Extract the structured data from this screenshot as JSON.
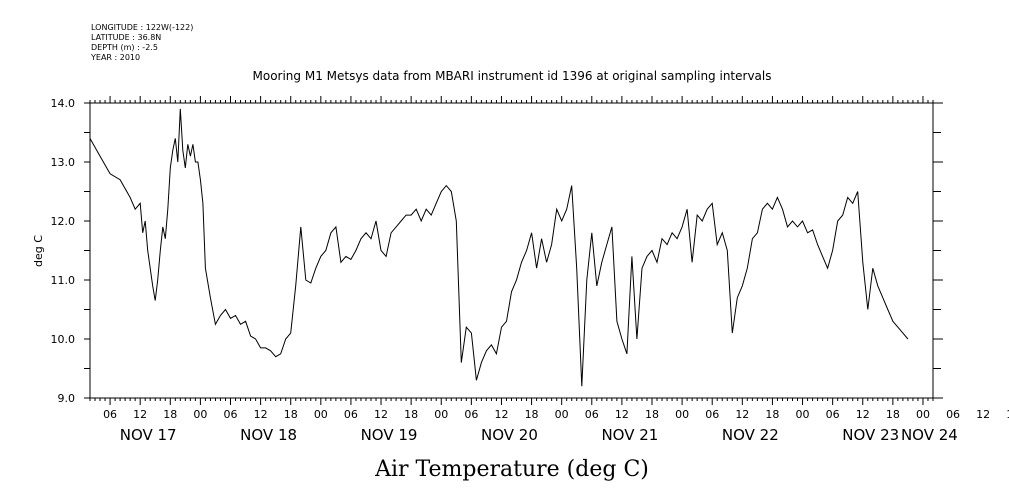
{
  "header": {
    "meta_lines": [
      "LONGITUDE : 122W(-122)",
      "LATITUDE : 36.8N",
      "DEPTH (m) : -2.5",
      "YEAR : 2010"
    ],
    "title": "Mooring M1 Metsys data from MBARI instrument id 1396 at original sampling intervals"
  },
  "chart_data": {
    "type": "line",
    "title": "Mooring M1 Metsys data from MBARI instrument id 1396 at original sampling intervals",
    "xlabel": "Air Temperature (deg C)",
    "ylabel": "deg C",
    "ylim": [
      9.0,
      14.0
    ],
    "y_ticks": [
      "9.0",
      "10.0",
      "11.0",
      "12.0",
      "13.0",
      "14.0"
    ],
    "xlim_hours": [
      0,
      168
    ],
    "x_hour_ticks": [
      "06",
      "12",
      "18",
      "00",
      "06",
      "12",
      "18",
      "00",
      "06",
      "12",
      "18",
      "00",
      "06",
      "12",
      "18",
      "00",
      "06",
      "12",
      "18",
      "00",
      "06",
      "12",
      "18",
      "00",
      "06",
      "12",
      "18",
      "00",
      "06",
      "12",
      "18",
      "00"
    ],
    "x_day_labels": [
      "NOV 17",
      "NOV 18",
      "NOV 19",
      "NOV 20",
      "NOV 21",
      "NOV 22",
      "NOV 23",
      "NOV 24"
    ],
    "grid": false,
    "line_color": "#000000",
    "series": [
      {
        "x_hours_from_nov17_0200": [
          0,
          2,
          4,
          6,
          8,
          9,
          10,
          10.5,
          11,
          11.5,
          12,
          12.5,
          13,
          13.5,
          14,
          14.5,
          15,
          15.5,
          16,
          16.5,
          17,
          17.5,
          18,
          18.5,
          19,
          19.5,
          20,
          20.5,
          21,
          21.5,
          22,
          22.5,
          23,
          24,
          25,
          26,
          27,
          28,
          29,
          30,
          31,
          32,
          33,
          34,
          35,
          36,
          37,
          38,
          39,
          40,
          41,
          42,
          43,
          44,
          45,
          46,
          47,
          48,
          49,
          50,
          51,
          52,
          53,
          54,
          55,
          56,
          57,
          58,
          59,
          60,
          61,
          62,
          63,
          64,
          65,
          66,
          67,
          68,
          69,
          70,
          71,
          72,
          73,
          74,
          75,
          76,
          77,
          78,
          79,
          80,
          81,
          82,
          83,
          84,
          85,
          86,
          87,
          88,
          89,
          90,
          91,
          92,
          93,
          94,
          95,
          96,
          97,
          98,
          99,
          100,
          101,
          102,
          103,
          104,
          105,
          106,
          107,
          108,
          109,
          110,
          111,
          112,
          113,
          114,
          115,
          116,
          117,
          118,
          119,
          120,
          121,
          122,
          123,
          124,
          125,
          126,
          127,
          128,
          129,
          130,
          131,
          132,
          133,
          134,
          135,
          136,
          137,
          138,
          139,
          140,
          141,
          142,
          143,
          144,
          145,
          146,
          147,
          148,
          149,
          150,
          151,
          152,
          153,
          154,
          155,
          156,
          157,
          158,
          159,
          160,
          161,
          162,
          163,
          164,
          165,
          166,
          167,
          168
        ],
        "values": [
          13.4,
          13.1,
          12.8,
          12.7,
          12.4,
          12.2,
          12.3,
          11.8,
          12.0,
          11.5,
          11.2,
          10.9,
          10.65,
          11.0,
          11.5,
          11.9,
          11.7,
          12.2,
          12.9,
          13.2,
          13.4,
          13.0,
          13.9,
          13.2,
          12.9,
          13.3,
          13.1,
          13.3,
          13.0,
          13.0,
          12.7,
          12.3,
          11.2,
          10.7,
          10.25,
          10.4,
          10.5,
          10.35,
          10.4,
          10.25,
          10.3,
          10.05,
          10.0,
          9.85,
          9.85,
          9.8,
          9.7,
          9.75,
          10.0,
          10.1,
          10.9,
          11.9,
          11.0,
          10.95,
          11.2,
          11.4,
          11.5,
          11.8,
          11.9,
          11.3,
          11.4,
          11.35,
          11.5,
          11.7,
          11.8,
          11.7,
          12.0,
          11.5,
          11.4,
          11.8,
          11.9,
          12.0,
          12.1,
          12.1,
          12.2,
          12.0,
          12.2,
          12.1,
          12.3,
          12.5,
          12.6,
          12.5,
          12.0,
          9.6,
          10.2,
          10.1,
          9.3,
          9.6,
          9.8,
          9.9,
          9.75,
          10.2,
          10.3,
          10.8,
          11.0,
          11.3,
          11.5,
          11.8,
          11.2,
          11.7,
          11.3,
          11.6,
          12.2,
          12.0,
          12.2,
          12.6,
          11.2,
          9.2,
          11.0,
          11.8,
          10.9,
          11.3,
          11.6,
          11.9,
          10.3,
          10.0,
          9.75,
          11.4,
          10.0,
          11.2,
          11.4,
          11.5,
          11.3,
          11.7,
          11.6,
          11.8,
          11.7,
          11.9,
          12.2,
          11.3,
          12.1,
          12.0,
          12.2,
          12.3,
          11.6,
          11.8,
          11.5,
          10.1,
          10.7,
          10.9,
          11.2,
          11.7,
          11.8,
          12.2,
          12.3,
          12.2,
          12.4,
          12.2,
          11.9,
          12.0,
          11.9,
          12.0,
          11.8,
          11.85,
          11.6,
          11.4,
          11.2,
          11.5,
          12.0,
          12.1,
          12.4,
          12.3,
          12.5,
          11.3,
          10.5,
          11.2,
          10.9,
          10.7,
          10.5,
          10.3,
          10.2,
          10.1,
          10.0
        ]
      }
    ]
  }
}
